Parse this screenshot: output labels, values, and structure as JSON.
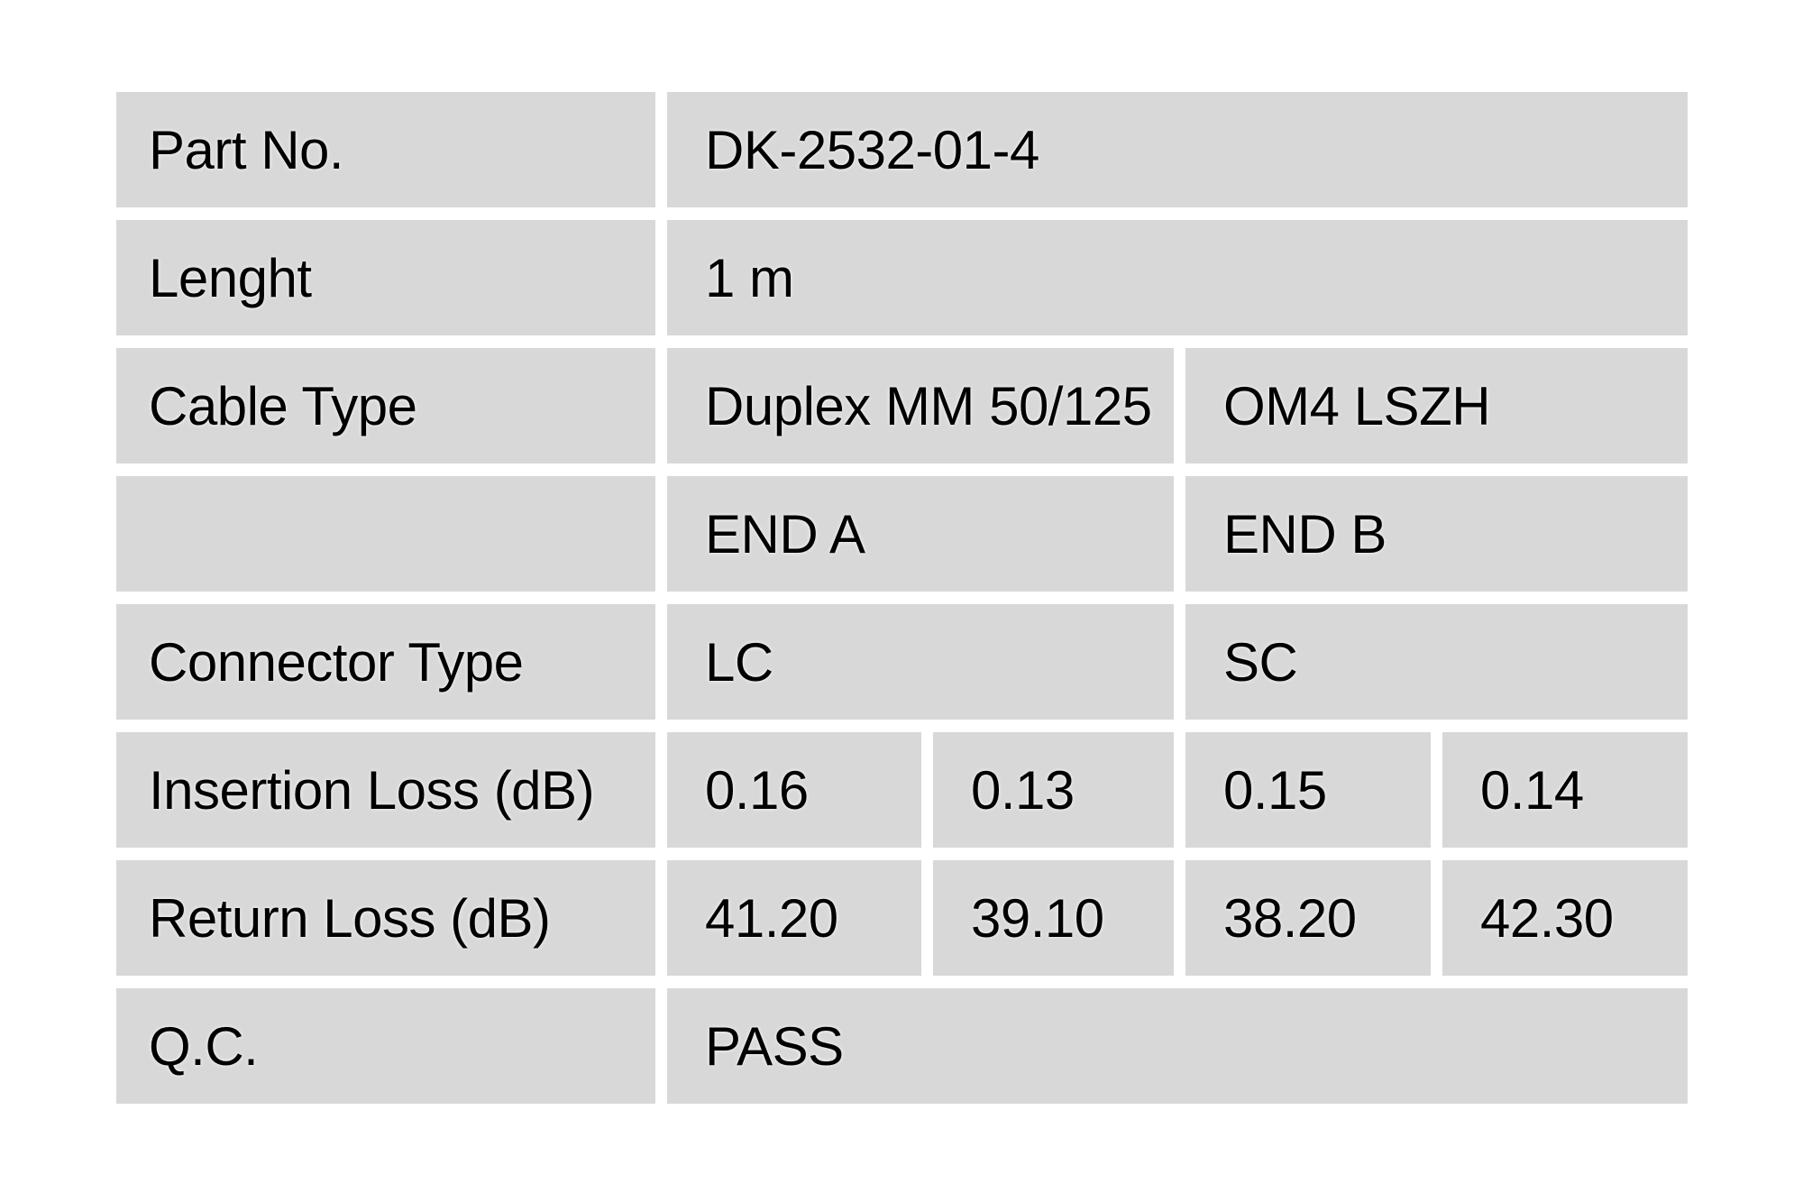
{
  "page": {
    "background_color": "#ffffff",
    "cell_background_color": "#d8d8d8",
    "text_color": "#000000"
  },
  "table": {
    "rows": [
      {
        "label": "Part No.",
        "value": "DK-2532-01-4"
      },
      {
        "label": "Lenght",
        "value": "1 m"
      },
      {
        "label": "Cable Type",
        "value_a": "Duplex MM 50/125",
        "value_b": "OM4 LSZH"
      },
      {
        "label": "",
        "value_a": "END A",
        "value_b": "END B"
      },
      {
        "label": "Connector Type",
        "value_a": "LC",
        "value_b": "SC"
      },
      {
        "label": "Insertion Loss (dB)",
        "values": [
          "0.16",
          "0.13",
          "0.15",
          "0.14"
        ]
      },
      {
        "label": "Return Loss (dB)",
        "values": [
          "41.20",
          "39.10",
          "38.20",
          "42.30"
        ]
      },
      {
        "label": "Q.C.",
        "value": "PASS"
      }
    ]
  }
}
